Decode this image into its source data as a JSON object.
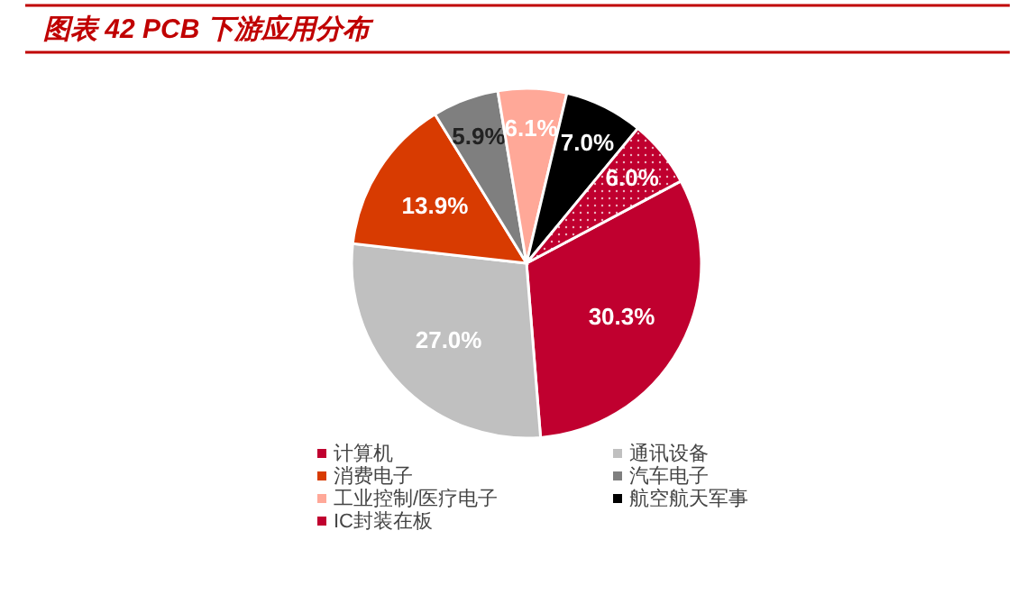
{
  "chart_data": {
    "type": "pie",
    "title": "图表 42 PCB 下游应用分布",
    "categories": [
      "计算机",
      "通讯设备",
      "消费电子",
      "汽车电子",
      "工业控制/医疗电子",
      "航空航天军事",
      "IC封装在板"
    ],
    "values": [
      30.3,
      27.0,
      13.9,
      5.9,
      6.1,
      7.0,
      6.0
    ],
    "value_labels": [
      "30.3%",
      "27.0%",
      "13.9%",
      "5.9%",
      "6.1%",
      "7.0%",
      "6.0%"
    ],
    "colors": [
      "#c0002f",
      "#c0c0c0",
      "#d83b01",
      "#7f7f7f",
      "#ffa898",
      "#000000",
      "#c0002f"
    ],
    "legend": "bottom"
  }
}
